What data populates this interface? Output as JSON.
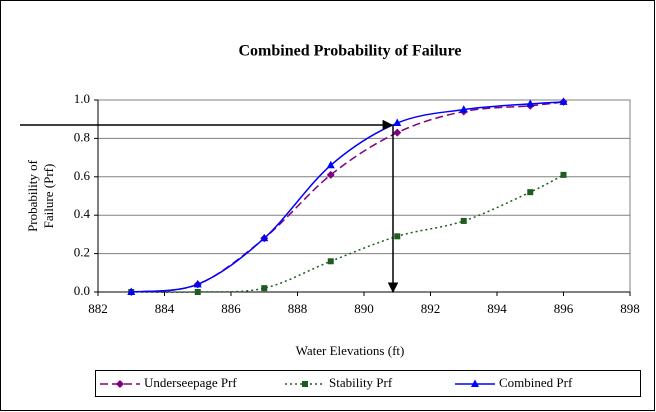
{
  "chart_data": {
    "type": "line",
    "title": "Combined Probability of Failure",
    "x_label": "Water Elevations (ft)",
    "y_label": [
      "Probability of",
      "Failure (Prf)"
    ],
    "xlim": [
      882,
      898
    ],
    "xticks": [
      882,
      884,
      886,
      888,
      890,
      892,
      894,
      896,
      898
    ],
    "ylim": [
      0,
      1
    ],
    "yticks": [
      {
        "value": 0,
        "label": "0.0"
      },
      {
        "value": 0.2,
        "label": "0.2"
      },
      {
        "value": 0.4,
        "label": "0.4"
      },
      {
        "value": 0.6,
        "label": "0.6"
      },
      {
        "value": 0.8,
        "label": "0.8"
      },
      {
        "value": 1,
        "label": "1.0"
      }
    ],
    "grid": true,
    "legend": "bottom",
    "series": [
      {
        "name": "Underseepage Prf",
        "color": "#800080",
        "dash": "8,4",
        "marker": "diamond",
        "x": [
          883,
          885,
          887,
          889,
          891,
          893,
          895,
          896
        ],
        "values": [
          0,
          0.04,
          0.28,
          0.61,
          0.83,
          0.94,
          0.97,
          0.99
        ]
      },
      {
        "name": "Stability Prf",
        "color": "#1f5c1f",
        "dash": "2,3",
        "marker": "square",
        "x": [
          883,
          885,
          887,
          889,
          891,
          893,
          895,
          896
        ],
        "values": [
          0,
          0,
          0.02,
          0.16,
          0.29,
          0.37,
          0.52,
          0.61
        ]
      },
      {
        "name": "Combined Prf",
        "color": "#0000ff",
        "dash": "",
        "marker": "triangle",
        "x": [
          883,
          885,
          887,
          889,
          891,
          893,
          895,
          896
        ],
        "values": [
          0,
          0.04,
          0.28,
          0.66,
          0.88,
          0.95,
          0.98,
          0.99
        ]
      }
    ]
  }
}
